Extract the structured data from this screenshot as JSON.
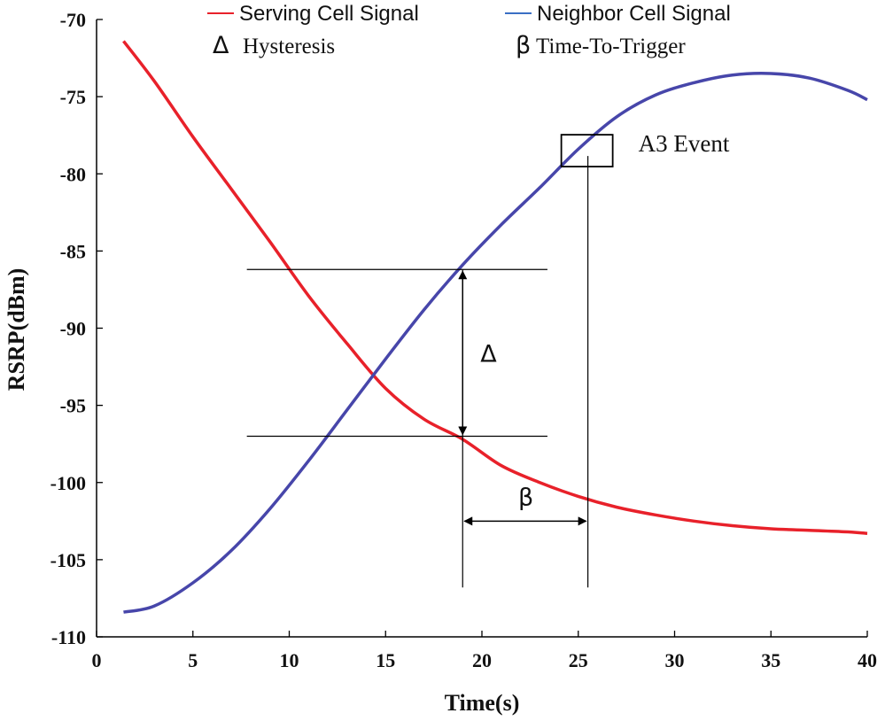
{
  "chart_data": {
    "type": "line",
    "xlabel": "Time(s)",
    "ylabel": "RSRP(dBm)",
    "xlim": [
      0,
      40
    ],
    "ylim": [
      -110,
      -70
    ],
    "xticks": [
      0,
      5,
      10,
      15,
      20,
      25,
      30,
      35,
      40
    ],
    "yticks": [
      -70,
      -75,
      -80,
      -85,
      -90,
      -95,
      -100,
      -105,
      -110
    ],
    "series": [
      {
        "name": "Serving Cell Signal",
        "color": "#e8212a",
        "x": [
          1.4,
          3,
          5,
          7,
          9,
          11,
          13,
          15,
          17,
          19,
          21,
          23,
          25,
          27,
          29,
          31,
          33,
          35,
          37,
          39,
          40
        ],
        "y": [
          -71.4,
          -74.0,
          -77.6,
          -81.0,
          -84.4,
          -87.9,
          -91.0,
          -93.9,
          -95.9,
          -97.2,
          -98.9,
          -100.0,
          -100.9,
          -101.6,
          -102.1,
          -102.5,
          -102.8,
          -103.0,
          -103.1,
          -103.2,
          -103.3
        ]
      },
      {
        "name": "Neighbor Cell Signal",
        "color": "#4746aa",
        "x": [
          1.4,
          3,
          5,
          7,
          9,
          11,
          13,
          15,
          17,
          19,
          21,
          23,
          25,
          27,
          29,
          31,
          33,
          35,
          37,
          39,
          40
        ],
        "y": [
          -108.4,
          -108.0,
          -106.5,
          -104.4,
          -101.7,
          -98.6,
          -95.3,
          -92.0,
          -88.8,
          -85.9,
          -83.3,
          -80.9,
          -78.4,
          -76.3,
          -74.9,
          -74.1,
          -73.6,
          -73.5,
          -73.8,
          -74.6,
          -75.2
        ]
      }
    ],
    "legend": {
      "placement": "top",
      "extra_entries": [
        {
          "symbol": "Δ",
          "label": "Hysteresis"
        },
        {
          "symbol": "β",
          "label": "Time-To-Trigger"
        }
      ]
    },
    "annotations": {
      "a3_event_label": "A3 Event",
      "a3_event_point": {
        "x": 25.5,
        "y": -78.5
      },
      "hysteresis_symbol": "Δ",
      "hysteresis_x": 19,
      "hysteresis_upper": -86.2,
      "hysteresis_lower": -97.0,
      "hysteresis_line_x_range": [
        7.8,
        23.4
      ],
      "ttt_symbol": "β",
      "ttt_start": 19,
      "ttt_end": 25.5,
      "ttt_arrow_y": -102.5,
      "vertical_line_bottom": -106.8
    }
  }
}
